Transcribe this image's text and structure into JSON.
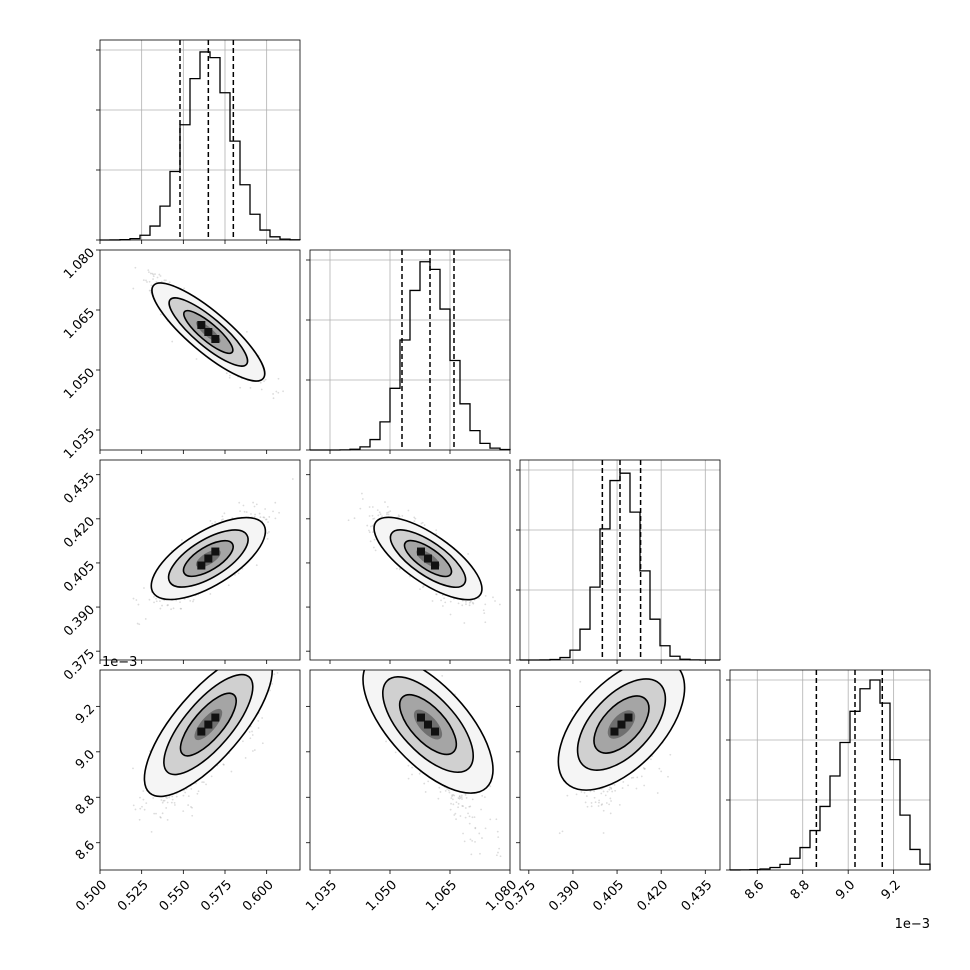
{
  "chart_data": {
    "type": "corner",
    "parameters": [
      {
        "range": [
          0.5,
          0.62
        ],
        "ticks": [
          "0.500",
          "0.525",
          "0.550",
          "0.575",
          "0.600"
        ],
        "tick_values": [
          0.5,
          0.525,
          0.55,
          0.575,
          0.6
        ],
        "offset": "",
        "quantiles": [
          0.548,
          0.565,
          0.58
        ],
        "hist_peak": 0.565,
        "hist_sigma": 0.014
      },
      {
        "range": [
          1.03,
          1.08
        ],
        "ticks": [
          "1.035",
          "1.050",
          "1.065",
          "1.080"
        ],
        "tick_values": [
          1.035,
          1.05,
          1.065,
          1.08
        ],
        "offset": "",
        "quantiles": [
          1.053,
          1.06,
          1.066
        ],
        "hist_peak": 1.0595,
        "hist_sigma": 0.0055
      },
      {
        "range": [
          0.372,
          0.44
        ],
        "ticks": [
          "0.375",
          "0.390",
          "0.405",
          "0.420",
          "0.435"
        ],
        "tick_values": [
          0.375,
          0.39,
          0.405,
          0.42,
          0.435
        ],
        "offset": "",
        "quantiles": [
          0.4,
          0.406,
          0.413
        ],
        "hist_peak": 0.4065,
        "hist_sigma": 0.0065
      },
      {
        "range": [
          8.48,
          9.36
        ],
        "ticks": [
          "8.6",
          "8.8",
          "9.0",
          "9.2"
        ],
        "tick_values": [
          8.6,
          8.8,
          9.0,
          9.2
        ],
        "offset": "1e−3",
        "quantiles": [
          8.86,
          9.03,
          9.15
        ],
        "hist_peak": 9.12,
        "hist_sigma": 0.15
      }
    ],
    "grid": true,
    "quantile_line_style": "dashed"
  }
}
